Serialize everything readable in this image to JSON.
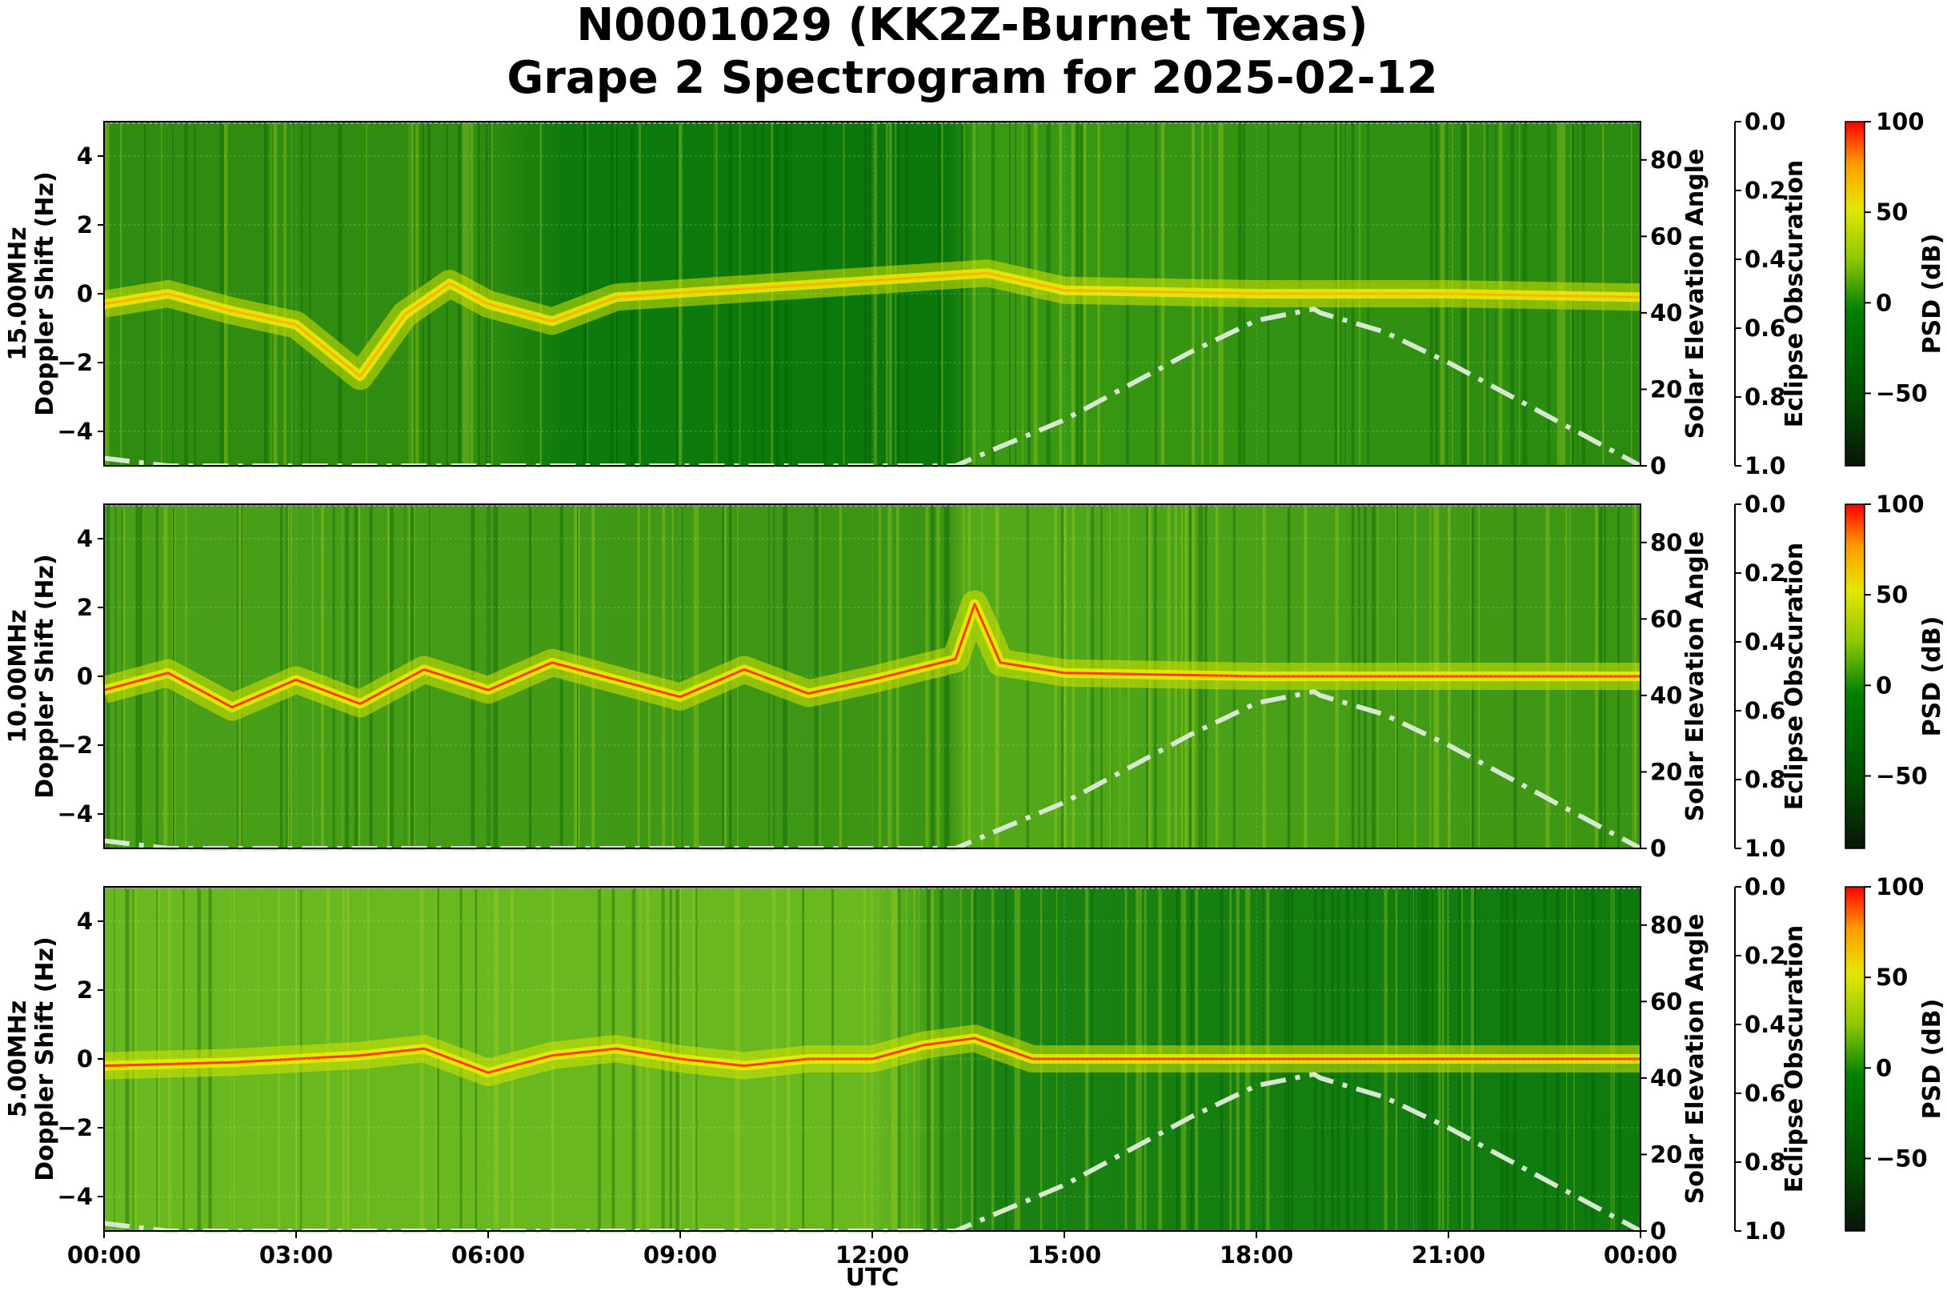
{
  "title": {
    "line1": "N0001029 (KK2Z-Burnet Texas)",
    "line2": "Grape 2 Spectrogram for 2025-02-12"
  },
  "colors": {
    "colormap": [
      "#0a140a",
      "#006400",
      "#007a00",
      "#7fc400",
      "#e8e800",
      "#ff8a00",
      "#ff0000"
    ],
    "solar_curve": "#d8e8d0",
    "background": "#ffffff"
  },
  "chart_data": [
    {
      "type": "heatmap",
      "panel": "15.00MHz",
      "ylabel": "15.00MHz\nDoppler Shift (Hz)",
      "ylabel_lines": [
        "15.00MHz",
        "Doppler Shift (Hz)"
      ],
      "ylim": [
        -5,
        5
      ],
      "yticks": [
        "4",
        "2",
        "0",
        "−2",
        "−4"
      ],
      "ytick_values": [
        4,
        2,
        0,
        -2,
        -4
      ],
      "right_axis_label": "Solar Elevation Angle",
      "right_ylim": [
        0,
        90
      ],
      "right_ticks": [
        "80",
        "60",
        "40",
        "20",
        "0"
      ],
      "right_tick_values": [
        80,
        60,
        40,
        20,
        0
      ],
      "eclipse_label": "Eclipse Obscuration",
      "eclipse_ylim": [
        1.0,
        0.0
      ],
      "eclipse_ticks": [
        "0.0",
        "0.2",
        "0.4",
        "0.6",
        "0.8",
        "1.0"
      ],
      "colorbar_label": "PSD (dB)",
      "colorbar_range": [
        -90,
        100
      ],
      "colorbar_ticks": [
        "100",
        "50",
        "0",
        "−50"
      ],
      "colorbar_tick_values": [
        100,
        50,
        0,
        -50
      ],
      "carrier_trace_hz": [
        [
          0,
          -0.3
        ],
        [
          1,
          0.0
        ],
        [
          2,
          -0.5
        ],
        [
          3,
          -0.9
        ],
        [
          4,
          -2.4
        ],
        [
          4.7,
          -0.6
        ],
        [
          5.4,
          0.3
        ],
        [
          6,
          -0.3
        ],
        [
          7,
          -0.8
        ],
        [
          8,
          -0.1
        ],
        [
          13.8,
          0.6
        ],
        [
          15,
          0.1
        ],
        [
          18,
          0.0
        ],
        [
          21,
          0.0
        ],
        [
          24,
          -0.1
        ]
      ],
      "solar_elevation_deg": [
        [
          0,
          2
        ],
        [
          1,
          0
        ],
        [
          13.3,
          0
        ],
        [
          14,
          5
        ],
        [
          15,
          12
        ],
        [
          16,
          21
        ],
        [
          17,
          30
        ],
        [
          18,
          38
        ],
        [
          18.9,
          41
        ],
        [
          19,
          40
        ],
        [
          20,
          35
        ],
        [
          21,
          27
        ],
        [
          22,
          18
        ],
        [
          23,
          9
        ],
        [
          24,
          0
        ]
      ]
    },
    {
      "type": "heatmap",
      "panel": "10.00MHz",
      "ylabel": "10.00MHz\nDoppler Shift (Hz)",
      "ylabel_lines": [
        "10.00MHz",
        "Doppler Shift (Hz)"
      ],
      "ylim": [
        -5,
        5
      ],
      "yticks": [
        "4",
        "2",
        "0",
        "−2",
        "−4"
      ],
      "ytick_values": [
        4,
        2,
        0,
        -2,
        -4
      ],
      "right_axis_label": "Solar Elevation Angle",
      "right_ylim": [
        0,
        90
      ],
      "right_ticks": [
        "80",
        "60",
        "40",
        "20",
        "0"
      ],
      "right_tick_values": [
        80,
        60,
        40,
        20,
        0
      ],
      "eclipse_label": "Eclipse Obscuration",
      "eclipse_ylim": [
        1.0,
        0.0
      ],
      "eclipse_ticks": [
        "0.0",
        "0.2",
        "0.4",
        "0.6",
        "0.8",
        "1.0"
      ],
      "colorbar_label": "PSD (dB)",
      "colorbar_range": [
        -90,
        100
      ],
      "colorbar_ticks": [
        "100",
        "50",
        "0",
        "−50"
      ],
      "colorbar_tick_values": [
        100,
        50,
        0,
        -50
      ],
      "carrier_trace_hz": [
        [
          0,
          -0.4
        ],
        [
          1,
          0.1
        ],
        [
          2,
          -0.9
        ],
        [
          3,
          -0.1
        ],
        [
          4,
          -0.8
        ],
        [
          5,
          0.2
        ],
        [
          6,
          -0.4
        ],
        [
          7,
          0.4
        ],
        [
          8,
          -0.1
        ],
        [
          9,
          -0.6
        ],
        [
          10,
          0.2
        ],
        [
          11,
          -0.5
        ],
        [
          12,
          -0.1
        ],
        [
          13.3,
          0.5
        ],
        [
          13.6,
          2.1
        ],
        [
          14,
          0.4
        ],
        [
          15,
          0.1
        ],
        [
          18,
          0.0
        ],
        [
          24,
          0.0
        ]
      ],
      "solar_elevation_deg": [
        [
          0,
          2
        ],
        [
          1,
          0
        ],
        [
          13.3,
          0
        ],
        [
          14,
          5
        ],
        [
          15,
          12
        ],
        [
          16,
          21
        ],
        [
          17,
          30
        ],
        [
          18,
          38
        ],
        [
          18.9,
          41
        ],
        [
          19,
          40
        ],
        [
          20,
          35
        ],
        [
          21,
          27
        ],
        [
          22,
          18
        ],
        [
          23,
          9
        ],
        [
          24,
          0
        ]
      ]
    },
    {
      "type": "heatmap",
      "panel": "5.00MHz",
      "ylabel": "5.00MHz\nDoppler Shift (Hz)",
      "ylabel_lines": [
        "5.00MHz",
        "Doppler Shift (Hz)"
      ],
      "ylim": [
        -5,
        5
      ],
      "yticks": [
        "4",
        "2",
        "0",
        "−2",
        "−4"
      ],
      "ytick_values": [
        4,
        2,
        0,
        -2,
        -4
      ],
      "right_axis_label": "Solar Elevation Angle",
      "right_ylim": [
        0,
        90
      ],
      "right_ticks": [
        "80",
        "60",
        "40",
        "20",
        "0"
      ],
      "right_tick_values": [
        80,
        60,
        40,
        20,
        0
      ],
      "eclipse_label": "Eclipse Obscuration",
      "eclipse_ylim": [
        1.0,
        0.0
      ],
      "eclipse_ticks": [
        "0.0",
        "0.2",
        "0.4",
        "0.6",
        "0.8",
        "1.0"
      ],
      "colorbar_label": "PSD (dB)",
      "colorbar_range": [
        -90,
        100
      ],
      "colorbar_ticks": [
        "100",
        "50",
        "0",
        "−50"
      ],
      "colorbar_tick_values": [
        100,
        50,
        0,
        -50
      ],
      "carrier_trace_hz": [
        [
          0,
          -0.2
        ],
        [
          2,
          -0.1
        ],
        [
          4,
          0.1
        ],
        [
          5,
          0.3
        ],
        [
          6,
          -0.4
        ],
        [
          7,
          0.1
        ],
        [
          8,
          0.3
        ],
        [
          9,
          0.0
        ],
        [
          10,
          -0.2
        ],
        [
          11,
          0.0
        ],
        [
          12,
          0.0
        ],
        [
          12.8,
          0.4
        ],
        [
          13.6,
          0.6
        ],
        [
          14.5,
          0.0
        ],
        [
          24,
          0.0
        ]
      ],
      "solar_elevation_deg": [
        [
          0,
          2
        ],
        [
          1,
          0
        ],
        [
          13.3,
          0
        ],
        [
          14,
          5
        ],
        [
          15,
          12
        ],
        [
          16,
          21
        ],
        [
          17,
          30
        ],
        [
          18,
          38
        ],
        [
          18.9,
          41
        ],
        [
          19,
          40
        ],
        [
          20,
          35
        ],
        [
          21,
          27
        ],
        [
          22,
          18
        ],
        [
          23,
          9
        ],
        [
          24,
          0
        ]
      ]
    }
  ],
  "x_axis": {
    "label": "UTC",
    "ticks": [
      "00:00",
      "03:00",
      "06:00",
      "09:00",
      "12:00",
      "15:00",
      "18:00",
      "21:00",
      "00:00"
    ],
    "tick_hours": [
      0,
      3,
      6,
      9,
      12,
      15,
      18,
      21,
      24
    ],
    "xlim_hours": [
      0,
      24
    ]
  }
}
